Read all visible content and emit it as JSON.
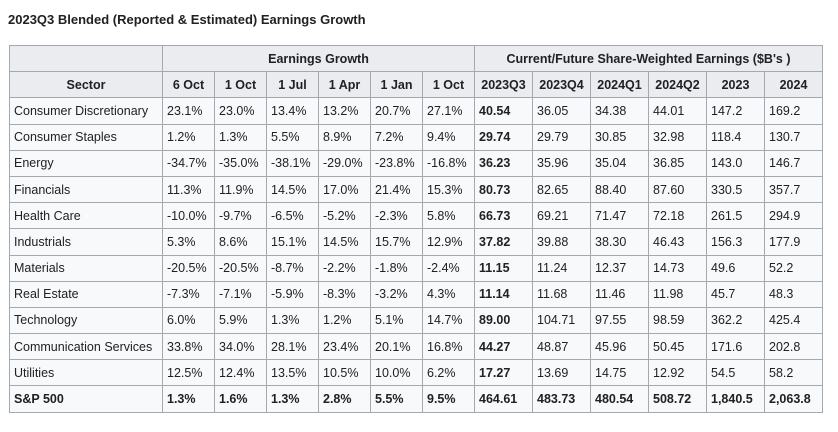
{
  "title": "2023Q3 Blended (Reported & Estimated) Earnings Growth",
  "group_headers": {
    "growth": "Earnings Growth",
    "share_weighted": "Current/Future Share-Weighted Earnings ($B's )"
  },
  "columns": [
    "Sector",
    "6 Oct",
    "1 Oct",
    "1 Jul",
    "1 Apr",
    "1 Jan",
    "1 Oct",
    "2023Q3",
    "2023Q4",
    "2024Q1",
    "2024Q2",
    "2023",
    "2024"
  ],
  "rows": [
    [
      "Consumer Discretionary",
      "23.1%",
      "23.0%",
      "13.4%",
      "13.2%",
      "20.7%",
      "27.1%",
      "40.54",
      "36.05",
      "34.38",
      "44.01",
      "147.2",
      "169.2"
    ],
    [
      "Consumer Staples",
      "1.2%",
      "1.3%",
      "5.5%",
      "8.9%",
      "7.2%",
      "9.4%",
      "29.74",
      "29.79",
      "30.85",
      "32.98",
      "118.4",
      "130.7"
    ],
    [
      "Energy",
      "-34.7%",
      "-35.0%",
      "-38.1%",
      "-29.0%",
      "-23.8%",
      "-16.8%",
      "36.23",
      "35.96",
      "35.04",
      "36.85",
      "143.0",
      "146.7"
    ],
    [
      "Financials",
      "11.3%",
      "11.9%",
      "14.5%",
      "17.0%",
      "21.4%",
      "15.3%",
      "80.73",
      "82.65",
      "88.40",
      "87.60",
      "330.5",
      "357.7"
    ],
    [
      "Health Care",
      "-10.0%",
      "-9.7%",
      "-6.5%",
      "-5.2%",
      "-2.3%",
      "5.8%",
      "66.73",
      "69.21",
      "71.47",
      "72.18",
      "261.5",
      "294.9"
    ],
    [
      "Industrials",
      "5.3%",
      "8.6%",
      "15.1%",
      "14.5%",
      "15.7%",
      "12.9%",
      "37.82",
      "39.88",
      "38.30",
      "46.43",
      "156.3",
      "177.9"
    ],
    [
      "Materials",
      "-20.5%",
      "-20.5%",
      "-8.7%",
      "-2.2%",
      "-1.8%",
      "-2.4%",
      "11.15",
      "11.24",
      "12.37",
      "14.73",
      "49.6",
      "52.2"
    ],
    [
      "Real Estate",
      "-7.3%",
      "-7.1%",
      "-5.9%",
      "-8.3%",
      "-3.2%",
      "4.3%",
      "11.14",
      "11.68",
      "11.46",
      "11.98",
      "45.7",
      "48.3"
    ],
    [
      "Technology",
      "6.0%",
      "5.9%",
      "1.3%",
      "1.2%",
      "5.1%",
      "14.7%",
      "89.00",
      "104.71",
      "97.55",
      "98.59",
      "362.2",
      "425.4"
    ],
    [
      "Communication Services",
      "33.8%",
      "34.0%",
      "28.1%",
      "23.4%",
      "20.1%",
      "16.8%",
      "44.27",
      "48.87",
      "45.96",
      "50.45",
      "171.6",
      "202.8"
    ],
    [
      "Utilities",
      "12.5%",
      "12.4%",
      "13.5%",
      "10.5%",
      "10.0%",
      "6.2%",
      "17.27",
      "13.69",
      "14.75",
      "12.92",
      "54.5",
      "58.2"
    ],
    [
      "S&P 500",
      "1.3%",
      "1.6%",
      "1.3%",
      "2.8%",
      "5.5%",
      "9.5%",
      "464.61",
      "483.73",
      "480.54",
      "508.72",
      "1,840.5",
      "2,063.8"
    ]
  ],
  "colors": {
    "header_bg": "#eaecf0",
    "cell_bg": "#f8f9fa",
    "border": "#a2a9b1",
    "text": "#202122"
  }
}
